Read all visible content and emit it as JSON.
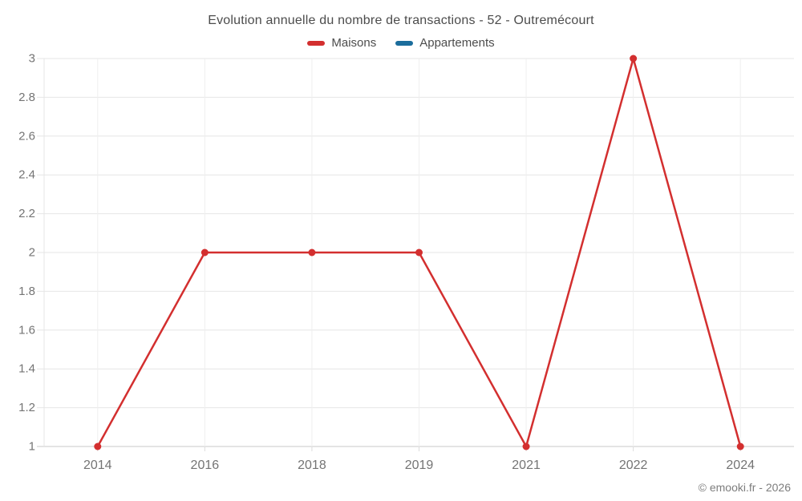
{
  "chart_data": {
    "type": "line",
    "title": "Evolution annuelle du nombre de transactions - 52 - Outremécourt",
    "categories": [
      "2014",
      "2016",
      "2018",
      "2019",
      "2021",
      "2022",
      "2024"
    ],
    "series": [
      {
        "name": "Maisons",
        "color": "#d32f2f",
        "values": [
          1,
          2,
          2,
          2,
          1,
          3,
          1
        ]
      },
      {
        "name": "Appartements",
        "color": "#1b6d9c",
        "values": []
      }
    ],
    "xlabel": "",
    "ylabel": "",
    "ylim": [
      1,
      3
    ],
    "y_ticks": [
      "1",
      "1.2",
      "1.4",
      "1.6",
      "1.8",
      "2",
      "2.2",
      "2.4",
      "2.6",
      "2.8",
      "3"
    ],
    "grid": true,
    "legend_position": "top"
  },
  "footer": {
    "copyright": "© emooki.fr - 2026"
  },
  "style": {
    "grid_color": "#e6e6e6",
    "vgrid_color": "#efefef",
    "axis_color": "#c9c9c9",
    "tick_color": "#dcdcdc",
    "label_color": "#747474"
  }
}
